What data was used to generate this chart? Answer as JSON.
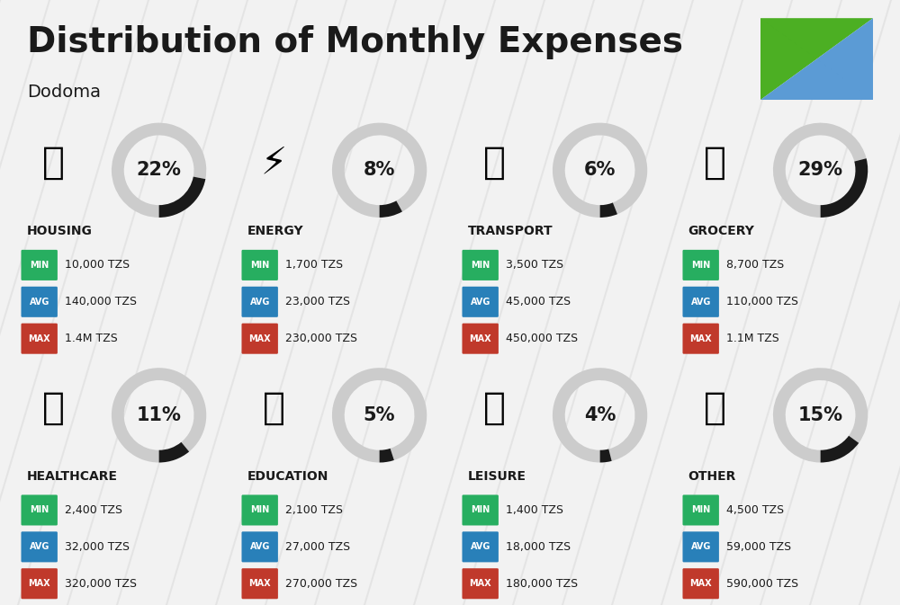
{
  "title": "Distribution of Monthly Expenses",
  "subtitle": "Dodoma",
  "bg_color": "#f2f2f2",
  "categories": [
    {
      "name": "HOUSING",
      "pct": 22,
      "icon": "🏗",
      "min": "10,000 TZS",
      "avg": "140,000 TZS",
      "max": "1.4M TZS",
      "row": 0,
      "col": 0
    },
    {
      "name": "ENERGY",
      "pct": 8,
      "icon": "⚡",
      "min": "1,700 TZS",
      "avg": "23,000 TZS",
      "max": "230,000 TZS",
      "row": 0,
      "col": 1
    },
    {
      "name": "TRANSPORT",
      "pct": 6,
      "icon": "🚌",
      "min": "3,500 TZS",
      "avg": "45,000 TZS",
      "max": "450,000 TZS",
      "row": 0,
      "col": 2
    },
    {
      "name": "GROCERY",
      "pct": 29,
      "icon": "🛒",
      "min": "8,700 TZS",
      "avg": "110,000 TZS",
      "max": "1.1M TZS",
      "row": 0,
      "col": 3
    },
    {
      "name": "HEALTHCARE",
      "pct": 11,
      "icon": "🩺",
      "min": "2,400 TZS",
      "avg": "32,000 TZS",
      "max": "320,000 TZS",
      "row": 1,
      "col": 0
    },
    {
      "name": "EDUCATION",
      "pct": 5,
      "icon": "🎓",
      "min": "2,100 TZS",
      "avg": "27,000 TZS",
      "max": "270,000 TZS",
      "row": 1,
      "col": 1
    },
    {
      "name": "LEISURE",
      "pct": 4,
      "icon": "🛍",
      "min": "1,400 TZS",
      "avg": "18,000 TZS",
      "max": "180,000 TZS",
      "row": 1,
      "col": 2
    },
    {
      "name": "OTHER",
      "pct": 15,
      "icon": "💰",
      "min": "4,500 TZS",
      "avg": "59,000 TZS",
      "max": "590,000 TZS",
      "row": 1,
      "col": 3
    }
  ],
  "color_min": "#27ae60",
  "color_avg": "#2980b9",
  "color_max": "#c0392b",
  "text_color": "#1a1a1a",
  "ring_filled": "#1a1a1a",
  "ring_empty": "#cccccc",
  "flag_green": "#4caf23",
  "flag_blue": "#5b9bd5",
  "flag_black": "#3d3d3d",
  "flag_yellow": "#f5c518",
  "stripe_color": "#d8d8d8",
  "stripe_alpha": 0.5,
  "title_fontsize": 28,
  "subtitle_fontsize": 14,
  "cat_name_fontsize": 10,
  "pct_fontsize": 15,
  "badge_label_fontsize": 7,
  "value_fontsize": 9
}
